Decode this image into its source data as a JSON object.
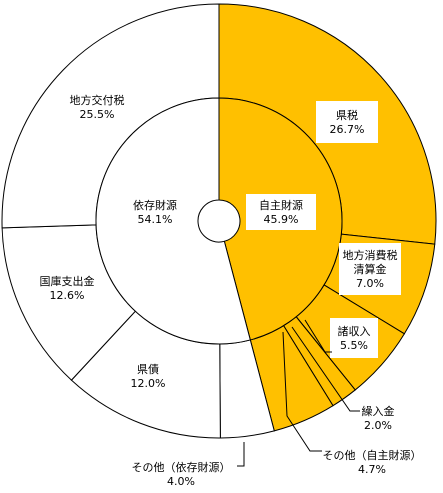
{
  "chart_data": {
    "type": "pie",
    "style": "double-donut",
    "inner_ring": [
      {
        "label": "自主財源",
        "percent_text": "45.9%",
        "value": 45.9,
        "color": "#FFC000"
      },
      {
        "label": "依存財源",
        "percent_text": "54.1%",
        "value": 54.1,
        "color": "#FFFFFF"
      }
    ],
    "outer_ring": [
      {
        "label": "県税",
        "percent_text": "26.7%",
        "value": 26.7,
        "group": "自主財源"
      },
      {
        "label": "地方消費税清算金",
        "label_lines": [
          "地方消費税",
          "清算金"
        ],
        "percent_text": "7.0%",
        "value": 7.0,
        "group": "自主財源"
      },
      {
        "label": "諸収入",
        "percent_text": "5.5%",
        "value": 5.5,
        "group": "自主財源"
      },
      {
        "label": "繰入金",
        "percent_text": "2.0%",
        "value": 2.0,
        "group": "自主財源"
      },
      {
        "label": "その他（自主財源）",
        "percent_text": "4.7%",
        "value": 4.7,
        "group": "自主財源"
      },
      {
        "label": "その他（依存財源）",
        "percent_text": "4.0%",
        "value": 4.0,
        "group": "依存財源"
      },
      {
        "label": "県債",
        "percent_text": "12.0%",
        "value": 12.0,
        "group": "依存財源"
      },
      {
        "label": "国庫支出金",
        "percent_text": "12.6%",
        "value": 12.6,
        "group": "依存財源"
      },
      {
        "label": "地方交付税",
        "percent_text": "25.5%",
        "value": 25.5,
        "group": "依存財源"
      }
    ],
    "colors": {
      "own": "#FFC000",
      "dependent": "#FFFFFF",
      "stroke": "#000000"
    },
    "start_angle": "12 o'clock",
    "direction": "clockwise"
  }
}
